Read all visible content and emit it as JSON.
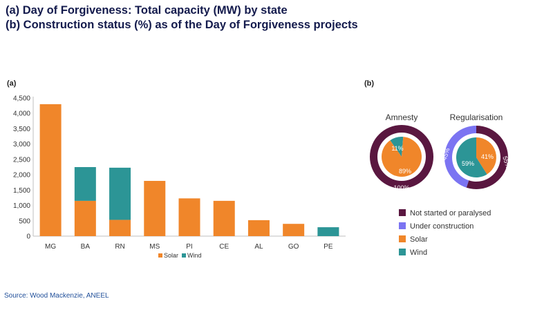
{
  "title_line1": "(a) Day of Forgiveness: Total capacity (MW) by state",
  "title_line2": "(b) Construction status (%) as of the Day of Forgiveness projects",
  "panel_a_label": "(a)",
  "panel_b_label": "(b)",
  "source": "Source: Wood Mackenzie, ANEEL",
  "colors": {
    "solar": "#f0862a",
    "wind": "#2c9596",
    "not_started": "#5a1740",
    "under_construction": "#7b74f2"
  },
  "chart_data": [
    {
      "type": "bar",
      "stacked": true,
      "title": "",
      "xlabel": "",
      "ylabel": "",
      "ylim": [
        0,
        4500
      ],
      "yticks": [
        "0",
        "500",
        "1,000",
        "1,500",
        "2,000",
        "2,500",
        "3,000",
        "3,500",
        "4,000",
        "4,500"
      ],
      "categories": [
        "MG",
        "BA",
        "RN",
        "MS",
        "PI",
        "CE",
        "AL",
        "GO",
        "PE"
      ],
      "series": [
        {
          "name": "Solar",
          "values": [
            4300,
            1150,
            530,
            1800,
            1230,
            1150,
            520,
            400,
            0
          ]
        },
        {
          "name": "Wind",
          "values": [
            0,
            1100,
            1700,
            0,
            0,
            0,
            0,
            0,
            290
          ]
        }
      ],
      "legend": {
        "position": "bottom",
        "entries": [
          "Solar",
          "Wind"
        ]
      }
    },
    {
      "type": "pie",
      "title": "Amnesty",
      "outer": [
        {
          "name": "Not started or paralysed",
          "value": 100,
          "label": "100%"
        }
      ],
      "inner": [
        {
          "name": "Solar",
          "value": 89,
          "label": "89%"
        },
        {
          "name": "Wind",
          "value": 11,
          "label": "11%"
        }
      ]
    },
    {
      "type": "pie",
      "title": "Regularisation",
      "outer": [
        {
          "name": "Not started or paralysed",
          "value": 55,
          "label": "55%"
        },
        {
          "name": "Under construction",
          "value": 45,
          "label": "45%"
        }
      ],
      "inner": [
        {
          "name": "Solar",
          "value": 41,
          "label": "41%"
        },
        {
          "name": "Wind",
          "value": 59,
          "label": "59%"
        }
      ]
    }
  ],
  "donut_legend": [
    {
      "label": "Not started or paralysed",
      "color_key": "not_started"
    },
    {
      "label": "Under construction",
      "color_key": "under_construction"
    },
    {
      "label": "Solar",
      "color_key": "solar"
    },
    {
      "label": "Wind",
      "color_key": "wind"
    }
  ]
}
